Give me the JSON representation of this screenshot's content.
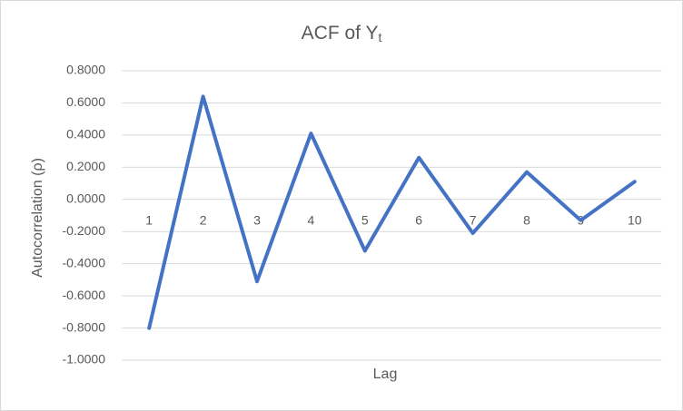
{
  "chart_data": {
    "type": "line",
    "title": "ACF of Y",
    "title_subscript": "t",
    "x_label": "Lag",
    "y_label": "Autocorrelation (ρ)",
    "categories": [
      "1",
      "2",
      "3",
      "4",
      "5",
      "6",
      "7",
      "8",
      "9",
      "10"
    ],
    "series": [
      {
        "name": "ACF",
        "color": "#4472c4",
        "values": [
          -0.8,
          0.64,
          -0.51,
          0.41,
          -0.32,
          0.26,
          -0.21,
          0.17,
          -0.13,
          0.11
        ]
      }
    ],
    "ylim": [
      -1,
      0.8
    ],
    "yticks": [
      {
        "value": -1,
        "label": "-1.0000"
      },
      {
        "value": -0.8,
        "label": "-0.8000"
      },
      {
        "value": -0.6,
        "label": "-0.6000"
      },
      {
        "value": -0.4,
        "label": "-0.4000"
      },
      {
        "value": -0.2,
        "label": "-0.2000"
      },
      {
        "value": 0,
        "label": "0.0000"
      },
      {
        "value": 0.2,
        "label": "0.2000"
      },
      {
        "value": 0.4,
        "label": "0.4000"
      },
      {
        "value": 0.6,
        "label": "0.6000"
      },
      {
        "value": 0.8,
        "label": "0.8000"
      }
    ],
    "grid": true
  }
}
